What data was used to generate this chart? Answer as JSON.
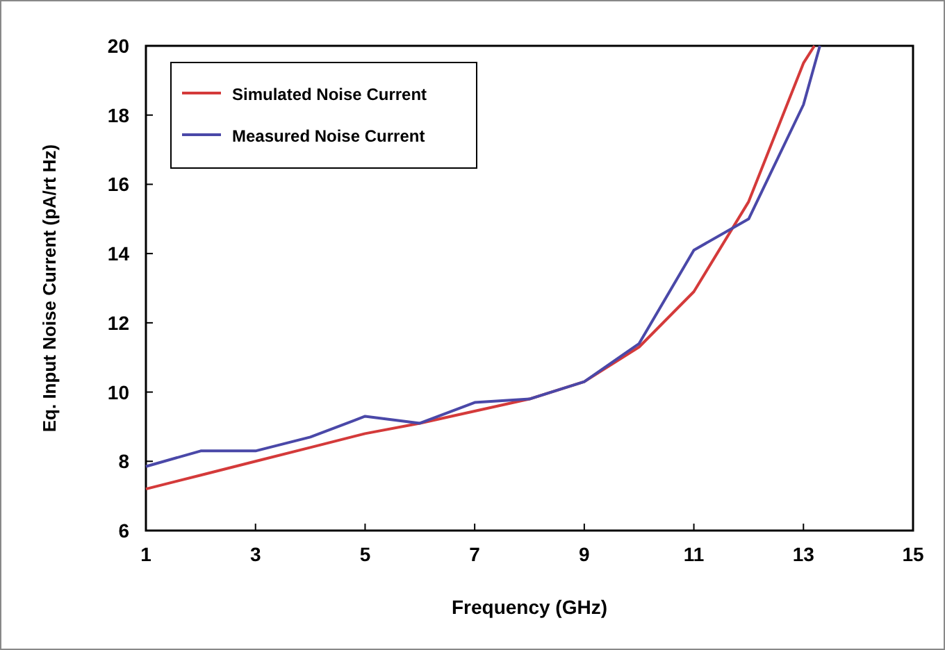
{
  "chart_data": {
    "type": "line",
    "xlabel": "Frequency (GHz)",
    "ylabel": "Eq. Input Noise Current (pA/rt Hz)",
    "xlim": [
      1,
      15
    ],
    "xticks": [
      1,
      3,
      5,
      7,
      9,
      11,
      13,
      15
    ],
    "ylim": [
      6,
      20
    ],
    "yticks": [
      6,
      8,
      10,
      12,
      14,
      16,
      18,
      20
    ],
    "grid": false,
    "legend": "top left",
    "marker": "none",
    "line_style": "solid",
    "series": [
      {
        "name": "Simulated Noise Current",
        "color": "#d43a3a",
        "x": [
          1,
          2,
          3,
          4,
          5,
          6,
          7,
          8,
          9,
          10,
          11,
          12,
          13,
          13.2
        ],
        "values": [
          7.2,
          7.6,
          8.0,
          8.4,
          8.8,
          9.1,
          9.45,
          9.8,
          10.3,
          11.3,
          12.9,
          15.5,
          19.5,
          20
        ]
      },
      {
        "name": "Measured Noise Current",
        "color": "#4a48a8",
        "x": [
          1,
          2,
          3,
          4,
          5,
          6,
          7,
          8,
          9,
          10,
          11,
          12,
          13,
          13.3
        ],
        "values": [
          7.85,
          8.3,
          8.3,
          8.7,
          9.3,
          9.1,
          9.7,
          9.8,
          10.3,
          11.4,
          14.1,
          15.0,
          18.3,
          20
        ]
      }
    ]
  }
}
